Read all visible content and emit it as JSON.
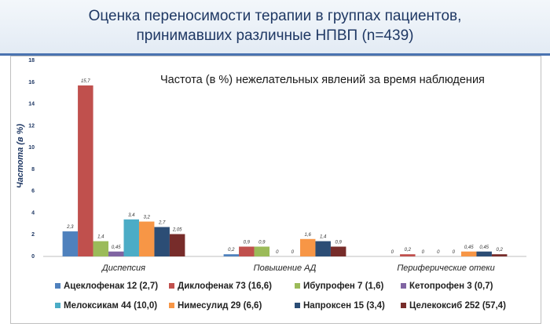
{
  "title_line1": "Оценка переносимости терапии в группах пациентов,",
  "title_line2": "принимавших различные НПВП (n=439)",
  "chart_data": {
    "type": "bar",
    "subtitle": "Частота (в %) нежелательных явлений за время наблюдения",
    "ylabel": "Частота (в %)",
    "ylim": [
      0,
      18
    ],
    "yticks": [
      0,
      2,
      4,
      6,
      8,
      10,
      12,
      14,
      16,
      18
    ],
    "grid": false,
    "legend_position": "bottom",
    "categories": [
      "Диспепсия",
      "Повышение АД",
      "Периферические отеки"
    ],
    "series": [
      {
        "name": "Ацеклофенак 12 (2,7)",
        "color": "#4f81bd",
        "values": [
          2.3,
          0.2,
          0
        ],
        "labels": [
          "2,3",
          "0,2",
          "0"
        ]
      },
      {
        "name": "Диклофенак 73 (16,6)",
        "color": "#c0504d",
        "values": [
          15.7,
          0.9,
          0.2
        ],
        "labels": [
          "15,7",
          "0,9",
          "0,2"
        ]
      },
      {
        "name": "Ибупрофен 7 (1,6)",
        "color": "#9bbb59",
        "values": [
          1.4,
          0.9,
          0
        ],
        "labels": [
          "1,4",
          "0,9",
          "0"
        ]
      },
      {
        "name": "Кетопрофен 3 (0,7)",
        "color": "#8064a2",
        "values": [
          0.45,
          0,
          0
        ],
        "labels": [
          "0,45",
          "0",
          "0"
        ]
      },
      {
        "name": "Мелоксикам 44 (10,0)",
        "color": "#4bacc6",
        "values": [
          3.4,
          0,
          0
        ],
        "labels": [
          "3,4",
          "0",
          "0"
        ]
      },
      {
        "name": "Нимесулид 29 (6,6)",
        "color": "#f79646",
        "values": [
          3.2,
          1.6,
          0.45
        ],
        "labels": [
          "3,2",
          "1,6",
          "0,45"
        ]
      },
      {
        "name": "Напроксен 15 (3,4)",
        "color": "#2c4d75",
        "values": [
          2.7,
          1.4,
          0.45
        ],
        "labels": [
          "2,7",
          "1,4",
          "0,45"
        ]
      },
      {
        "name": "Целекоксиб 252 (57,4)",
        "color": "#772c2a",
        "values": [
          2.05,
          0.9,
          0.2
        ],
        "labels": [
          "2,05",
          "0,9",
          "0,2"
        ]
      }
    ]
  }
}
